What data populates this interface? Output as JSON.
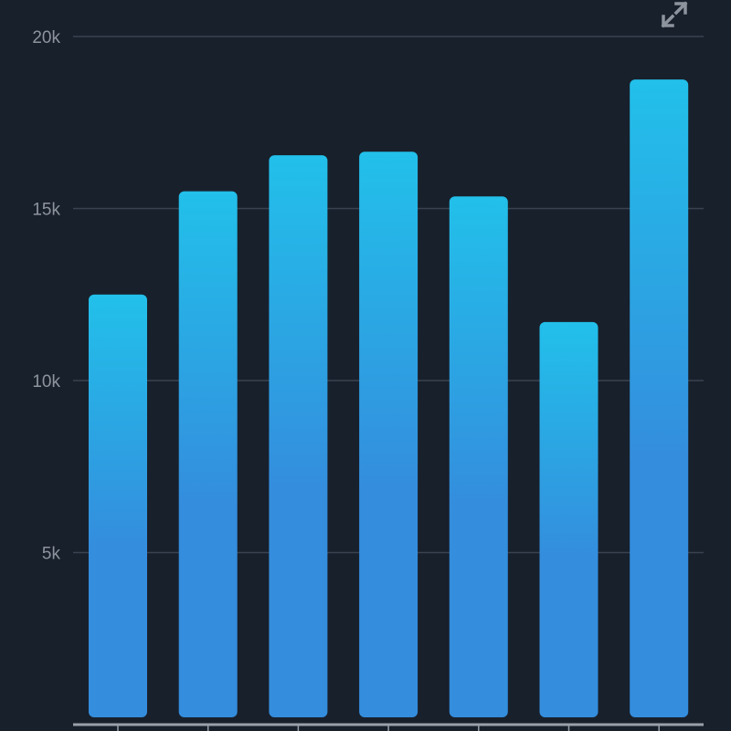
{
  "chart_data": {
    "type": "bar",
    "categories": [
      "",
      "",
      "",
      "",
      "",
      "",
      ""
    ],
    "values": [
      12500,
      15500,
      16550,
      16650,
      15350,
      11700,
      18750
    ],
    "title": "",
    "xlabel": "",
    "ylabel": "",
    "ylim": [
      0,
      20000
    ],
    "yticks": [
      5000,
      10000,
      15000,
      20000
    ],
    "ytick_labels": [
      "5k",
      "10k",
      "15k",
      "20k"
    ],
    "grid": "horizontal",
    "legend": "none"
  },
  "colors": {
    "background": "#18202c",
    "bar_top": "#22c0ea",
    "bar_bottom": "#348ddd",
    "grid": "#3a4250",
    "axis": "#9aa0a8",
    "tick_text": "#8e949d"
  },
  "toolbar": {
    "expand_icon": "expand-arrows-icon"
  }
}
